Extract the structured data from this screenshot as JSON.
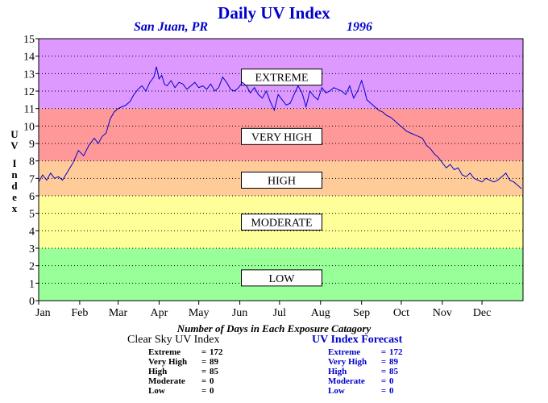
{
  "title": "Daily UV Index",
  "location": "San Juan, PR",
  "year": "1996",
  "ylabel": [
    "U",
    "V",
    "",
    "I",
    "n",
    "d",
    "e",
    "x"
  ],
  "counts_title": "Number of Days in Each Exposure Catagory",
  "clear_sky": {
    "heading": "Clear Sky UV Index",
    "rows": [
      {
        "label": "Extreme",
        "eq": "=",
        "value": "172"
      },
      {
        "label": "Very High",
        "eq": "=",
        "value": "89"
      },
      {
        "label": "High",
        "eq": "=",
        "value": "85"
      },
      {
        "label": "Moderate",
        "eq": "=",
        "value": "0"
      },
      {
        "label": "Low",
        "eq": "=",
        "value": "0"
      }
    ]
  },
  "forecast": {
    "heading": "UV Index Forecast",
    "rows": [
      {
        "label": "Extreme",
        "eq": "=",
        "value": "172"
      },
      {
        "label": "Very High",
        "eq": "=",
        "value": "89"
      },
      {
        "label": "High",
        "eq": "=",
        "value": "85"
      },
      {
        "label": "Moderate",
        "eq": "=",
        "value": "0"
      },
      {
        "label": "Low",
        "eq": "=",
        "value": "0"
      }
    ]
  },
  "chart_data": {
    "type": "line",
    "xlabel": "",
    "ylabel": "UV Index",
    "ylim": [
      0,
      15
    ],
    "xlim": [
      0,
      366
    ],
    "yticks": [
      "0",
      "1",
      "2",
      "3",
      "4",
      "5",
      "6",
      "7",
      "8",
      "9",
      "10",
      "11",
      "12",
      "13",
      "14",
      "15"
    ],
    "month_ticks": [
      {
        "label": "Jan",
        "day": 0
      },
      {
        "label": "Feb",
        "day": 31
      },
      {
        "label": "Mar",
        "day": 60
      },
      {
        "label": "Apr",
        "day": 91
      },
      {
        "label": "May",
        "day": 121
      },
      {
        "label": "Jun",
        "day": 152
      },
      {
        "label": "Jul",
        "day": 182
      },
      {
        "label": "Aug",
        "day": 213
      },
      {
        "label": "Sep",
        "day": 244
      },
      {
        "label": "Oct",
        "day": 274
      },
      {
        "label": "Nov",
        "day": 305
      },
      {
        "label": "Dec",
        "day": 335
      }
    ],
    "grid": true,
    "bands": [
      {
        "label": "LOW",
        "from": 0,
        "to": 3,
        "color": "#99ff99",
        "label_y": 1.3
      },
      {
        "label": "MODERATE",
        "from": 3,
        "to": 6,
        "color": "#ffff99",
        "label_y": 4.5
      },
      {
        "label": "HIGH",
        "from": 6,
        "to": 8,
        "color": "#ffcc99",
        "label_y": 6.9
      },
      {
        "label": "VERY HIGH",
        "from": 8,
        "to": 11,
        "color": "#ff9999",
        "label_y": 9.4
      },
      {
        "label": "EXTREME",
        "from": 11,
        "to": 15,
        "color": "#dd99ff",
        "label_y": 12.8
      }
    ],
    "line_color": "#0000cc",
    "series": [
      {
        "name": "",
        "x": [
          0,
          3,
          6,
          9,
          12,
          15,
          18,
          22,
          26,
          30,
          34,
          38,
          42,
          45,
          48,
          51,
          54,
          57,
          60,
          63,
          66,
          69,
          72,
          75,
          78,
          81,
          84,
          87,
          89,
          91,
          93,
          95,
          97,
          100,
          103,
          106,
          109,
          112,
          115,
          118,
          121,
          124,
          127,
          130,
          133,
          136,
          139,
          142,
          145,
          148,
          151,
          154,
          157,
          160,
          163,
          166,
          169,
          172,
          175,
          178,
          181,
          184,
          187,
          190,
          193,
          196,
          199,
          202,
          205,
          208,
          211,
          214,
          217,
          220,
          223,
          226,
          229,
          232,
          235,
          238,
          241,
          244,
          246,
          248,
          251,
          254,
          257,
          260,
          263,
          266,
          269,
          272,
          275,
          278,
          281,
          284,
          287,
          290,
          293,
          296,
          299,
          302,
          305,
          308,
          311,
          314,
          317,
          320,
          323,
          326,
          329,
          332,
          335,
          338,
          341,
          344,
          347,
          350,
          353,
          356,
          359,
          362,
          365
        ],
        "y": [
          6.8,
          7.2,
          6.9,
          7.3,
          7.0,
          7.1,
          6.9,
          7.4,
          7.9,
          8.6,
          8.3,
          8.9,
          9.3,
          9.0,
          9.4,
          9.6,
          10.4,
          10.8,
          11.0,
          11.1,
          11.2,
          11.4,
          11.8,
          12.1,
          12.3,
          12.0,
          12.5,
          12.8,
          13.4,
          12.7,
          12.9,
          12.4,
          12.3,
          12.6,
          12.2,
          12.5,
          12.4,
          12.1,
          12.3,
          12.5,
          12.2,
          12.3,
          12.1,
          12.4,
          12.0,
          12.2,
          12.8,
          12.5,
          12.1,
          12.0,
          12.2,
          12.5,
          12.3,
          11.9,
          12.2,
          11.8,
          11.6,
          12.0,
          11.4,
          10.9,
          11.8,
          11.5,
          11.2,
          11.3,
          11.8,
          12.3,
          11.9,
          11.1,
          12.0,
          11.7,
          11.5,
          12.2,
          11.9,
          12.0,
          12.2,
          12.1,
          12.0,
          11.8,
          12.3,
          11.6,
          12.0,
          12.6,
          12.1,
          11.5,
          11.3,
          11.1,
          10.9,
          10.8,
          10.6,
          10.5,
          10.3,
          10.1,
          9.9,
          9.7,
          9.6,
          9.5,
          9.4,
          9.3,
          8.9,
          8.7,
          8.4,
          8.2,
          7.9,
          7.6,
          7.8,
          7.5,
          7.6,
          7.2,
          7.1,
          7.3,
          7.0,
          6.9,
          6.8,
          7.0,
          6.9,
          6.8,
          6.9,
          7.1,
          7.3,
          6.9,
          6.8,
          6.6,
          6.4
        ]
      }
    ]
  }
}
